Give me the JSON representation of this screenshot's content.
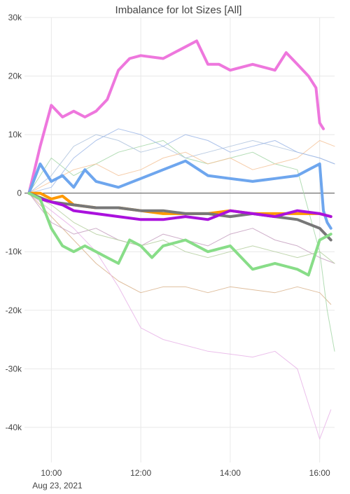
{
  "chart_data": {
    "type": "line",
    "title": "Imbalance for lot Sizes [All]",
    "xlabel": "",
    "ylabel": "",
    "date_label": "Aug 23, 2021",
    "xlim": [
      "09:24",
      "16:20"
    ],
    "ylim": [
      -46000,
      30000
    ],
    "grid": true,
    "legend": "none",
    "y_ticks": [
      {
        "value": 30000,
        "label": "30k"
      },
      {
        "value": 20000,
        "label": "20k"
      },
      {
        "value": 10000,
        "label": "10k"
      },
      {
        "value": 0,
        "label": "0"
      },
      {
        "value": -10000,
        "label": "-10k"
      },
      {
        "value": -20000,
        "label": "-20k"
      },
      {
        "value": -30000,
        "label": "-30k"
      },
      {
        "value": -40000,
        "label": "-40k"
      }
    ],
    "x_ticks": [
      {
        "value": "10:00",
        "label": "10:00"
      },
      {
        "value": "12:00",
        "label": "12:00"
      },
      {
        "value": "14:00",
        "label": "14:00"
      },
      {
        "value": "16:00",
        "label": "16:00"
      }
    ],
    "series": [
      {
        "color": "#ee77dd",
        "width": 4,
        "x": [
          "09:30",
          "09:45",
          "10:00",
          "10:15",
          "10:30",
          "10:45",
          "11:00",
          "11:15",
          "11:30",
          "11:45",
          "12:00",
          "12:30",
          "13:00",
          "13:15",
          "13:30",
          "13:45",
          "14:00",
          "14:30",
          "15:00",
          "15:15",
          "15:30",
          "15:45",
          "15:55",
          "16:00",
          "16:05"
        ],
        "values": [
          0,
          8000,
          15000,
          13000,
          14000,
          13000,
          14000,
          16000,
          21000,
          23000,
          23500,
          23000,
          25000,
          26000,
          22000,
          22000,
          21000,
          22000,
          21000,
          24000,
          22000,
          20000,
          18000,
          12000,
          11000
        ]
      },
      {
        "color": "#6ea6ee",
        "width": 4,
        "x": [
          "09:30",
          "09:45",
          "10:00",
          "10:15",
          "10:30",
          "10:45",
          "11:00",
          "11:30",
          "12:00",
          "12:30",
          "13:00",
          "13:30",
          "14:00",
          "14:30",
          "15:00",
          "15:30",
          "15:45",
          "16:00",
          "16:05",
          "16:10",
          "16:15"
        ],
        "values": [
          0,
          5000,
          2000,
          3000,
          1000,
          4000,
          2000,
          1000,
          2500,
          4000,
          5500,
          3000,
          2500,
          2000,
          2500,
          3000,
          4000,
          5000,
          -3000,
          -5000,
          -6000
        ]
      },
      {
        "color": "#ff9900",
        "width": 4,
        "x": [
          "09:30",
          "09:45",
          "10:00",
          "10:15",
          "10:30",
          "11:00",
          "11:30",
          "12:00",
          "12:30",
          "13:00",
          "13:30",
          "14:00",
          "14:30",
          "15:00",
          "15:30",
          "16:00",
          "16:15"
        ],
        "values": [
          0,
          0,
          -1000,
          -500,
          -2000,
          -2500,
          -2500,
          -3000,
          -3500,
          -3500,
          -3500,
          -3000,
          -3500,
          -3500,
          -3500,
          -3500,
          -4000
        ]
      },
      {
        "color": "#777777",
        "width": 4,
        "x": [
          "09:30",
          "10:00",
          "10:30",
          "11:00",
          "11:30",
          "12:00",
          "12:30",
          "13:00",
          "13:30",
          "14:00",
          "14:30",
          "15:00",
          "15:30",
          "16:00",
          "16:15"
        ],
        "values": [
          0,
          -1500,
          -2000,
          -2500,
          -2500,
          -3000,
          -3000,
          -3500,
          -3500,
          -4000,
          -3500,
          -4000,
          -4500,
          -6000,
          -8000
        ]
      },
      {
        "color": "#aa11dd",
        "width": 4,
        "x": [
          "09:30",
          "09:45",
          "10:00",
          "10:15",
          "10:30",
          "11:00",
          "11:30",
          "12:00",
          "12:30",
          "13:00",
          "13:30",
          "14:00",
          "14:30",
          "15:00",
          "15:30",
          "16:00",
          "16:15"
        ],
        "values": [
          0,
          -1000,
          -1500,
          -2000,
          -3000,
          -3500,
          -4000,
          -4500,
          -4500,
          -4000,
          -4500,
          -3000,
          -3500,
          -4000,
          -3000,
          -3500,
          -4000
        ]
      },
      {
        "color": "#88dd88",
        "width": 4,
        "x": [
          "09:30",
          "09:45",
          "10:00",
          "10:15",
          "10:30",
          "10:45",
          "11:00",
          "11:15",
          "11:30",
          "11:45",
          "12:00",
          "12:15",
          "12:30",
          "13:00",
          "13:30",
          "14:00",
          "14:15",
          "14:30",
          "15:00",
          "15:30",
          "15:45",
          "16:00",
          "16:15"
        ],
        "values": [
          0,
          -1000,
          -6000,
          -9000,
          -10000,
          -9000,
          -10000,
          -11000,
          -12000,
          -8000,
          -9000,
          -11000,
          -9000,
          -8000,
          -10000,
          -9000,
          -11000,
          -13000,
          -12000,
          -13000,
          -14000,
          -8000,
          -7000
        ]
      },
      {
        "color": "#d9b38c",
        "width": 1,
        "x": [
          "09:30",
          "10:00",
          "10:30",
          "11:00",
          "11:30",
          "12:00",
          "12:30",
          "13:00",
          "13:30",
          "14:00",
          "14:30",
          "15:00",
          "15:30",
          "16:00",
          "16:15"
        ],
        "values": [
          0,
          -4000,
          -8000,
          -12000,
          -15000,
          -17000,
          -16000,
          -16000,
          -17000,
          -16000,
          -16500,
          -17000,
          -16000,
          -17000,
          -19000
        ]
      },
      {
        "color": "#e8b4e8",
        "width": 1,
        "x": [
          "09:30",
          "10:00",
          "10:30",
          "11:00",
          "11:30",
          "12:00",
          "12:30",
          "13:00",
          "13:30",
          "14:00",
          "14:30",
          "15:00",
          "15:30",
          "15:45",
          "16:00",
          "16:15"
        ],
        "values": [
          0,
          -3000,
          -6000,
          -10000,
          -16000,
          -23000,
          -25000,
          -26000,
          -27000,
          -27500,
          -28000,
          -27000,
          -30000,
          -36000,
          -42000,
          -37000
        ]
      },
      {
        "color": "#a5d6a7",
        "width": 1,
        "x": [
          "09:30",
          "10:00",
          "10:30",
          "11:00",
          "11:30",
          "12:00",
          "12:30",
          "13:00",
          "13:30",
          "14:00",
          "14:30",
          "15:00",
          "15:30",
          "16:00",
          "16:10",
          "16:20"
        ],
        "values": [
          0,
          6000,
          3000,
          5000,
          7000,
          8000,
          9000,
          6000,
          5000,
          6000,
          7000,
          5000,
          4000,
          -10000,
          -20000,
          -27000
        ]
      },
      {
        "color": "#b0c4de",
        "width": 1,
        "x": [
          "09:30",
          "10:00",
          "10:30",
          "11:00",
          "11:30",
          "12:00",
          "12:30",
          "13:00",
          "13:30",
          "14:00",
          "14:30",
          "15:00",
          "15:30",
          "16:00",
          "16:20"
        ],
        "values": [
          0,
          3000,
          8000,
          10000,
          9000,
          7000,
          8000,
          6000,
          7000,
          8000,
          9000,
          8000,
          7000,
          6000,
          5000
        ]
      },
      {
        "color": "#c5a0c0",
        "width": 1,
        "x": [
          "09:30",
          "10:00",
          "10:30",
          "11:00",
          "11:30",
          "12:00",
          "12:30",
          "13:00",
          "13:30",
          "14:00",
          "14:30",
          "15:00",
          "15:30",
          "16:00",
          "16:20"
        ],
        "values": [
          0,
          -5000,
          -7000,
          -6000,
          -8000,
          -9000,
          -7000,
          -8000,
          -9000,
          -7000,
          -6000,
          -8000,
          -9000,
          -11000,
          -12000
        ]
      },
      {
        "color": "#f4c49b",
        "width": 1,
        "x": [
          "09:30",
          "10:00",
          "10:30",
          "11:00",
          "11:30",
          "12:00",
          "12:30",
          "13:00",
          "13:30",
          "14:00",
          "14:30",
          "15:00",
          "15:30",
          "16:00",
          "16:20"
        ],
        "values": [
          0,
          2000,
          4000,
          5000,
          3000,
          4000,
          6000,
          7000,
          5000,
          6000,
          4000,
          5000,
          6000,
          9000,
          8000
        ]
      },
      {
        "color": "#b5cfa0",
        "width": 1,
        "x": [
          "09:30",
          "10:00",
          "10:30",
          "11:00",
          "11:30",
          "12:00",
          "12:30",
          "13:00",
          "13:30",
          "14:00",
          "14:30",
          "15:00",
          "15:30",
          "16:00",
          "16:20"
        ],
        "values": [
          0,
          -2000,
          -5000,
          -7000,
          -8000,
          -9000,
          -8000,
          -10000,
          -11000,
          -10000,
          -9000,
          -10000,
          -11000,
          -10000,
          -12000
        ]
      },
      {
        "color": "#9fb8e8",
        "width": 1,
        "x": [
          "09:30",
          "10:00",
          "10:30",
          "11:00",
          "11:30",
          "12:00",
          "12:30",
          "13:00",
          "13:30",
          "14:00",
          "14:30",
          "15:00",
          "15:30",
          "16:00",
          "16:20"
        ],
        "values": [
          0,
          1000,
          6000,
          9000,
          11000,
          10000,
          8000,
          10000,
          9000,
          7000,
          8000,
          9000,
          7000,
          6000,
          5000
        ]
      }
    ]
  }
}
